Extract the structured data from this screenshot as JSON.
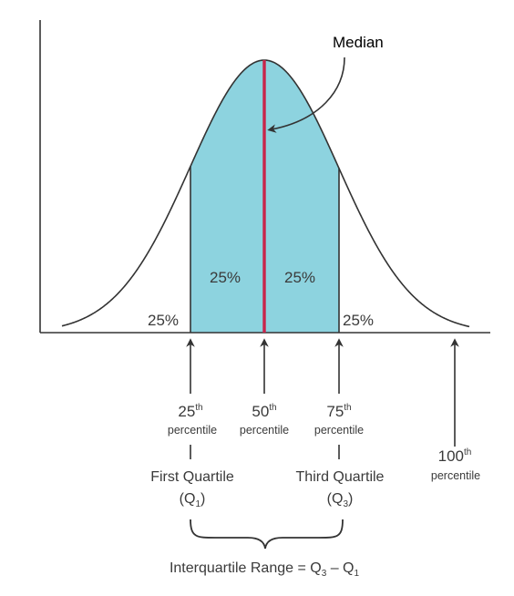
{
  "median_label": "Median",
  "area_labels": {
    "left_tail": "25%",
    "left_center": "25%",
    "right_center": "25%",
    "right_tail": "25%"
  },
  "markers": {
    "p25": {
      "number": "25",
      "suffix": "th",
      "word": "percentile"
    },
    "p50": {
      "number": "50",
      "suffix": "th",
      "word": "percentile"
    },
    "p75": {
      "number": "75",
      "suffix": "th",
      "word": "percentile"
    },
    "p100": {
      "number": "100",
      "suffix": "th",
      "word": "percentile"
    }
  },
  "quartiles": {
    "first": {
      "name": "First Quartile",
      "open": "(Q",
      "sub": "1",
      "close": ")"
    },
    "third": {
      "name": "Third Quartile",
      "open": "(Q",
      "sub": "3",
      "close": ")"
    }
  },
  "iqr": {
    "text": "Interquartile Range = Q",
    "sub_a": "3",
    "minus": " – Q",
    "sub_b": "1"
  },
  "colors": {
    "fill": "#8dd3df",
    "median_line": "#c8254a",
    "lines": "#333333"
  }
}
